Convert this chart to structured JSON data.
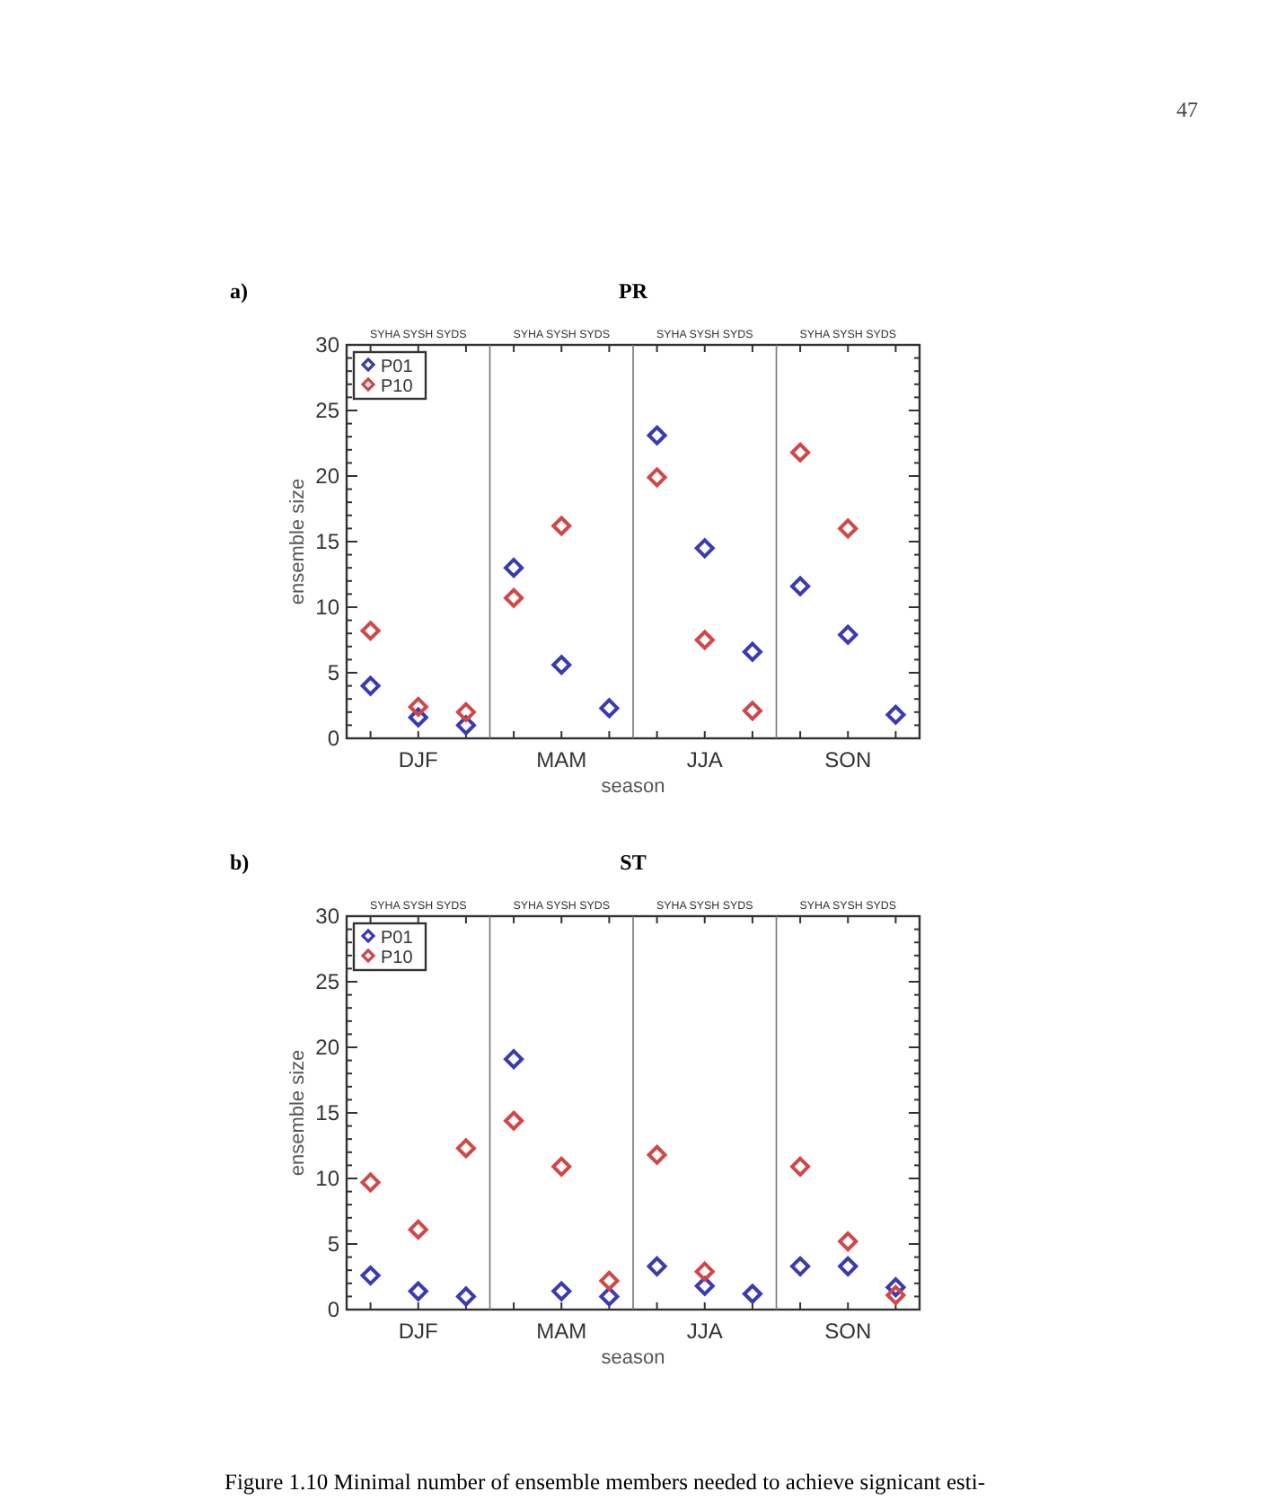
{
  "chart_data": [
    {
      "type": "scatter",
      "title": "PR",
      "xlabel": "season",
      "ylabel": "ensemble size",
      "categories": [
        null,
        "DJF",
        null,
        null,
        "MAM",
        null,
        null,
        "JJA",
        null,
        null,
        "SON",
        null
      ],
      "annotations": [
        "a)",
        "SYHA SYSH SYDS",
        "SYHA SYSH SYDS",
        "SYHA SYSH SYDS",
        "SYHA SYSH SYDS",
        "47"
      ],
      "marker": "diamond",
      "legend": "top left",
      "ylim": [
        0,
        30
      ],
      "yticks": [
        0,
        {
          "value": 1,
          "label": null
        },
        {
          "value": 2,
          "label": null
        },
        {
          "value": 3,
          "label": null
        },
        {
          "value": 4,
          "label": null
        },
        5,
        {
          "value": 6,
          "label": null
        },
        {
          "value": 7,
          "label": null
        },
        {
          "value": 8,
          "label": null
        },
        {
          "value": 9,
          "label": null
        },
        10,
        {
          "value": 11,
          "label": null
        },
        {
          "value": 12,
          "label": null
        },
        {
          "value": 13,
          "label": null
        },
        {
          "value": 14,
          "label": null
        },
        15,
        {
          "value": 16,
          "label": null
        },
        {
          "value": 17,
          "label": null
        },
        {
          "value": 18,
          "label": null
        },
        {
          "value": 19,
          "label": null
        },
        20,
        {
          "value": 21,
          "label": null
        },
        {
          "value": 22,
          "label": null
        },
        {
          "value": 23,
          "label": null
        },
        {
          "value": 24,
          "label": null
        },
        25,
        {
          "value": 26,
          "label": null
        },
        {
          "value": 27,
          "label": null
        },
        {
          "value": 28,
          "label": null
        },
        {
          "value": 29,
          "label": null
        },
        30
      ],
      "series": [
        {
          "name": "P01",
          "color": "#3a3ab4",
          "values": [
            4.0,
            1.6,
            1.0,
            13.0,
            5.6,
            2.3,
            23.1,
            14.5,
            6.6,
            11.6,
            7.9,
            1.8
          ]
        },
        {
          "name": "P10",
          "color": "#d24646",
          "values": [
            8.2,
            2.4,
            2.0,
            10.7,
            16.2,
            null,
            19.9,
            7.5,
            2.1,
            21.8,
            16.0,
            null
          ]
        }
      ]
    },
    {
      "type": "scatter",
      "title": "ST",
      "xlabel": "season",
      "ylabel": "ensemble size",
      "categories": [
        null,
        "DJF",
        null,
        null,
        "MAM",
        null,
        null,
        "JJA",
        null,
        null,
        "SON",
        null
      ],
      "annotations": [
        "b)",
        "SYHA SYSH SYDS",
        "SYHA SYSH SYDS",
        "SYHA SYSH SYDS",
        "SYHA SYSH SYDS",
        "Figure 1.10 Minimal number of ensemble members needed to achieve signicant esti-"
      ],
      "marker": "diamond",
      "legend": "top left",
      "ylim": [
        0,
        30
      ],
      "yticks": [
        0,
        {
          "value": 1,
          "label": null
        },
        {
          "value": 2,
          "label": null
        },
        {
          "value": 3,
          "label": null
        },
        {
          "value": 4,
          "label": null
        },
        5,
        {
          "value": 6,
          "label": null
        },
        {
          "value": 7,
          "label": null
        },
        {
          "value": 8,
          "label": null
        },
        {
          "value": 9,
          "label": null
        },
        10,
        {
          "value": 11,
          "label": null
        },
        {
          "value": 12,
          "label": null
        },
        {
          "value": 13,
          "label": null
        },
        {
          "value": 14,
          "label": null
        },
        15,
        {
          "value": 16,
          "label": null
        },
        {
          "value": 17,
          "label": null
        },
        {
          "value": 18,
          "label": null
        },
        {
          "value": 19,
          "label": null
        },
        20,
        {
          "value": 21,
          "label": null
        },
        {
          "value": 22,
          "label": null
        },
        {
          "value": 23,
          "label": null
        },
        {
          "value": 24,
          "label": null
        },
        25,
        {
          "value": 26,
          "label": null
        },
        {
          "value": 27,
          "label": null
        },
        {
          "value": 28,
          "label": null
        },
        {
          "value": 29,
          "label": null
        },
        30
      ],
      "series": [
        {
          "name": "P01",
          "color": "#3a3ab4",
          "values": [
            2.6,
            1.4,
            1.0,
            19.1,
            1.4,
            1.0,
            3.3,
            1.8,
            1.2,
            3.3,
            3.3,
            1.7
          ]
        },
        {
          "name": "P10",
          "color": "#d24646",
          "values": [
            9.7,
            6.1,
            12.3,
            14.4,
            10.9,
            2.2,
            11.8,
            2.9,
            null,
            10.9,
            5.2,
            1.1
          ]
        }
      ]
    }
  ]
}
